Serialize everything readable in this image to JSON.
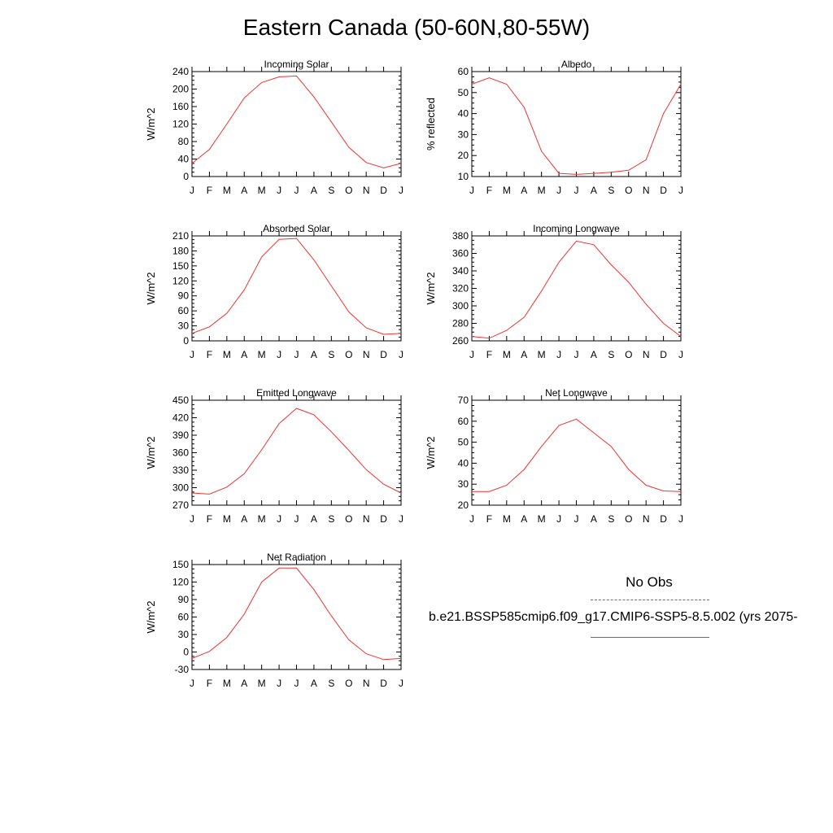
{
  "title": "Eastern Canada (50-60N,80-55W)",
  "legend": {
    "obs_label": "No Obs",
    "model_label": "b.e21.BSSP585cmip6.f09_g17.CMIP6-SSP5-8.5.002 (yrs 2075-",
    "obs_color": "#5566dd",
    "model_color": "#ee3333"
  },
  "chart_data": [
    {
      "type": "line",
      "title": "Incoming Solar",
      "ylabel": "W/m^2",
      "categories": [
        "J",
        "F",
        "M",
        "A",
        "M",
        "J",
        "J",
        "A",
        "S",
        "O",
        "N",
        "D",
        "J"
      ],
      "ylim": [
        0,
        240
      ],
      "yticks": [
        0,
        40,
        80,
        120,
        160,
        200,
        240
      ],
      "series": [
        {
          "values": [
            30,
            62,
            120,
            180,
            215,
            228,
            230,
            182,
            125,
            67,
            32,
            20,
            30
          ]
        }
      ]
    },
    {
      "type": "line",
      "title": "Albedo",
      "ylabel": "% reflected",
      "categories": [
        "J",
        "F",
        "M",
        "A",
        "M",
        "J",
        "J",
        "A",
        "S",
        "O",
        "N",
        "D",
        "J"
      ],
      "ylim": [
        10,
        60
      ],
      "yticks": [
        10,
        20,
        30,
        40,
        50,
        60
      ],
      "series": [
        {
          "values": [
            54,
            57,
            54,
            43,
            22,
            11.5,
            11,
            11.5,
            12,
            13,
            18,
            40,
            54
          ]
        }
      ]
    },
    {
      "type": "line",
      "title": "Absorbed Solar",
      "ylabel": "W/m^2",
      "categories": [
        "J",
        "F",
        "M",
        "A",
        "M",
        "J",
        "J",
        "A",
        "S",
        "O",
        "N",
        "D",
        "J"
      ],
      "ylim": [
        0,
        210
      ],
      "yticks": [
        0,
        30,
        60,
        90,
        120,
        150,
        180,
        210
      ],
      "series": [
        {
          "values": [
            15,
            28,
            55,
            102,
            168,
            203,
            205,
            162,
            110,
            58,
            26,
            13,
            15
          ]
        }
      ]
    },
    {
      "type": "line",
      "title": "Incoming Longwave",
      "ylabel": "W/m^2",
      "categories": [
        "J",
        "F",
        "M",
        "A",
        "M",
        "J",
        "J",
        "A",
        "S",
        "O",
        "N",
        "D",
        "J"
      ],
      "ylim": [
        260,
        380
      ],
      "yticks": [
        260,
        280,
        300,
        320,
        340,
        360,
        380
      ],
      "series": [
        {
          "values": [
            265,
            263,
            272,
            287,
            317,
            350,
            374,
            370,
            347,
            327,
            302,
            280,
            265
          ]
        }
      ]
    },
    {
      "type": "line",
      "title": "Emitted Longwave",
      "ylabel": "W/m^2",
      "categories": [
        "J",
        "F",
        "M",
        "A",
        "M",
        "J",
        "J",
        "A",
        "S",
        "O",
        "N",
        "D",
        "J"
      ],
      "ylim": [
        270,
        450
      ],
      "yticks": [
        270,
        300,
        330,
        360,
        390,
        420,
        450
      ],
      "series": [
        {
          "values": [
            291,
            289,
            301,
            324,
            365,
            410,
            436,
            425,
            396,
            364,
            331,
            306,
            291
          ]
        }
      ]
    },
    {
      "type": "line",
      "title": "Net Longwave",
      "ylabel": "W/m^2",
      "categories": [
        "J",
        "F",
        "M",
        "A",
        "M",
        "J",
        "J",
        "A",
        "S",
        "O",
        "N",
        "D",
        "J"
      ],
      "ylim": [
        20,
        70
      ],
      "yticks": [
        20,
        30,
        40,
        50,
        60,
        70
      ],
      "series": [
        {
          "values": [
            26.5,
            26.5,
            29.5,
            37,
            48,
            58,
            61,
            54.5,
            48,
            37,
            29.5,
            26.8,
            26.5
          ]
        }
      ]
    },
    {
      "type": "line",
      "title": "Net Radiation",
      "ylabel": "W/m^2",
      "categories": [
        "J",
        "F",
        "M",
        "A",
        "M",
        "J",
        "J",
        "A",
        "S",
        "O",
        "N",
        "D",
        "J"
      ],
      "ylim": [
        -30,
        150
      ],
      "yticks": [
        -30,
        0,
        30,
        60,
        90,
        120,
        150
      ],
      "series": [
        {
          "values": [
            -11,
            1,
            25,
            65,
            120,
            144,
            144,
            107,
            62,
            21,
            -3,
            -13,
            -11
          ]
        }
      ]
    }
  ]
}
